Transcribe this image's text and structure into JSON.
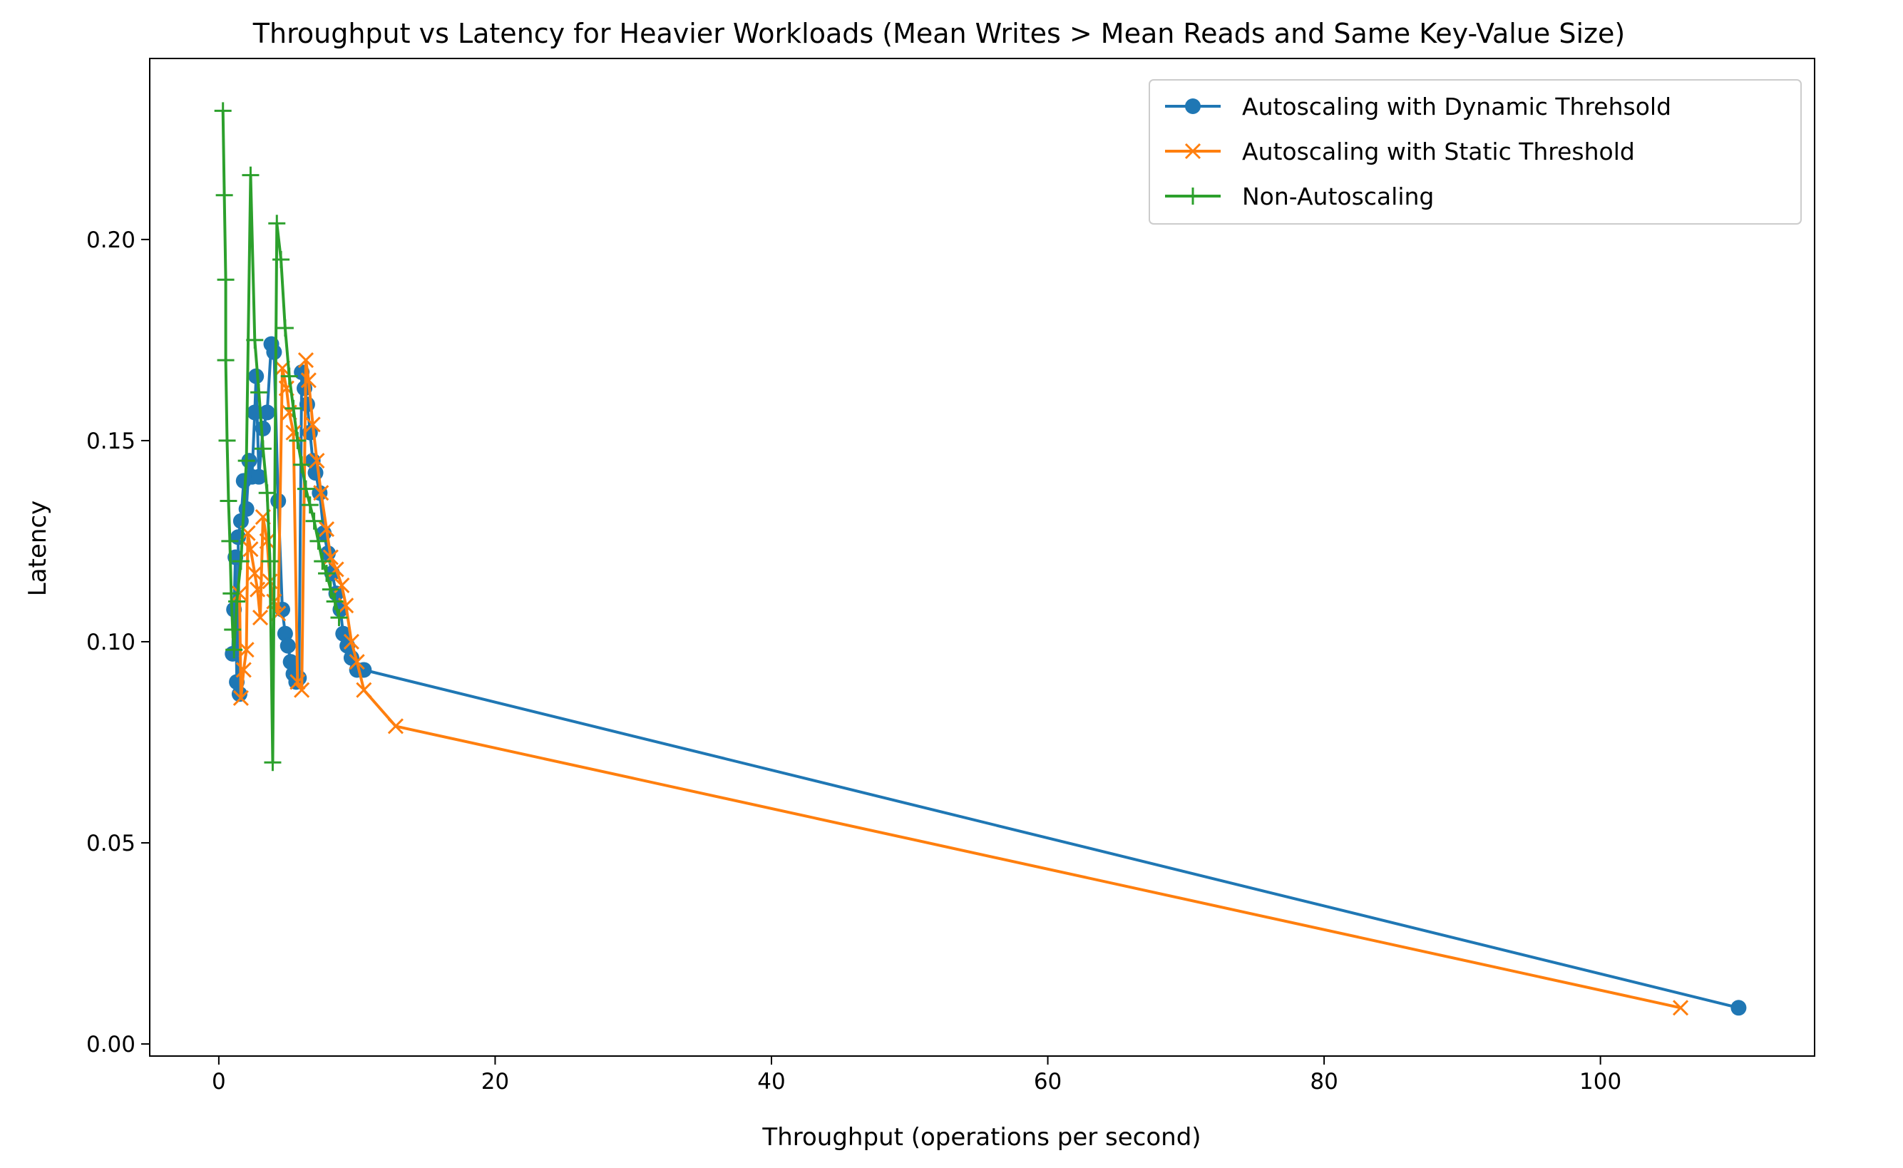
{
  "chart_data": {
    "type": "line",
    "title": "Throughput vs Latency for Heavier Workloads (Mean Writes > Mean Reads and Same Key-Value Size)",
    "xlabel": "Throughput (operations per second)",
    "ylabel": "Latency",
    "xlim": [
      -5,
      115.5
    ],
    "ylim": [
      -0.003,
      0.245
    ],
    "xticks": [
      0,
      20,
      40,
      60,
      80,
      100
    ],
    "yticks": [
      0.0,
      0.05,
      0.1,
      0.15,
      0.2
    ],
    "xtick_labels": [
      "0",
      "20",
      "40",
      "60",
      "80",
      "100"
    ],
    "ytick_labels": [
      "0.00",
      "0.05",
      "0.10",
      "0.15",
      "0.20"
    ],
    "grid": false,
    "legend_position": "top-right",
    "series": [
      {
        "name": "Autoscaling with Dynamic Threhsold",
        "color": "#1f77b4",
        "marker": "circle",
        "x": [
          1.0,
          1.1,
          1.2,
          1.3,
          1.5,
          1.4,
          1.6,
          1.8,
          2.0,
          2.2,
          2.4,
          2.6,
          2.7,
          2.9,
          3.2,
          3.5,
          3.8,
          4.0,
          4.3,
          4.6,
          4.8,
          5.0,
          5.2,
          5.4,
          5.6,
          5.8,
          6.0,
          6.2,
          6.4,
          6.6,
          6.8,
          7.0,
          7.3,
          7.6,
          7.9,
          8.2,
          8.5,
          8.8,
          9.0,
          9.3,
          9.6,
          10.0,
          10.5,
          110.0
        ],
        "y": [
          0.097,
          0.108,
          0.121,
          0.09,
          0.087,
          0.126,
          0.13,
          0.14,
          0.133,
          0.145,
          0.141,
          0.157,
          0.166,
          0.141,
          0.153,
          0.157,
          0.174,
          0.172,
          0.135,
          0.108,
          0.102,
          0.099,
          0.095,
          0.092,
          0.09,
          0.091,
          0.167,
          0.163,
          0.159,
          0.152,
          0.145,
          0.142,
          0.137,
          0.127,
          0.122,
          0.117,
          0.112,
          0.108,
          0.102,
          0.099,
          0.096,
          0.093,
          0.093,
          0.009
        ]
      },
      {
        "name": "Autoscaling with Static Threshold",
        "color": "#ff7f0e",
        "marker": "x",
        "x": [
          1.5,
          1.6,
          1.8,
          2.0,
          2.1,
          2.3,
          2.6,
          2.8,
          3.0,
          3.2,
          3.5,
          3.7,
          4.0,
          4.3,
          4.6,
          4.9,
          5.1,
          5.4,
          5.7,
          6.0,
          6.3,
          6.5,
          6.8,
          7.1,
          7.4,
          7.8,
          8.1,
          8.5,
          8.9,
          9.2,
          9.6,
          10.0,
          10.5,
          12.8,
          105.8
        ],
        "y": [
          0.112,
          0.086,
          0.093,
          0.098,
          0.127,
          0.123,
          0.117,
          0.113,
          0.106,
          0.131,
          0.125,
          0.115,
          0.11,
          0.107,
          0.168,
          0.163,
          0.157,
          0.152,
          0.09,
          0.088,
          0.17,
          0.165,
          0.154,
          0.145,
          0.137,
          0.128,
          0.121,
          0.118,
          0.114,
          0.109,
          0.1,
          0.095,
          0.088,
          0.079,
          0.009
        ]
      },
      {
        "name": "Non-Autoscaling",
        "color": "#2ca02c",
        "marker": "plus",
        "x": [
          0.3,
          0.4,
          0.5,
          0.5,
          0.6,
          0.7,
          0.8,
          0.9,
          1.0,
          1.1,
          1.3,
          1.6,
          2.0,
          2.3,
          2.6,
          2.9,
          3.2,
          3.5,
          3.7,
          3.9,
          4.2,
          4.5,
          4.8,
          5.1,
          5.4,
          5.7,
          6.0,
          6.3,
          6.6,
          6.9,
          7.2,
          7.5,
          7.8,
          8.1,
          8.4,
          8.7
        ],
        "y": [
          0.232,
          0.211,
          0.19,
          0.17,
          0.15,
          0.135,
          0.125,
          0.112,
          0.103,
          0.098,
          0.11,
          0.12,
          0.145,
          0.216,
          0.175,
          0.162,
          0.148,
          0.137,
          0.12,
          0.07,
          0.204,
          0.195,
          0.178,
          0.166,
          0.158,
          0.15,
          0.144,
          0.138,
          0.134,
          0.13,
          0.125,
          0.12,
          0.117,
          0.113,
          0.11,
          0.106
        ]
      }
    ]
  }
}
